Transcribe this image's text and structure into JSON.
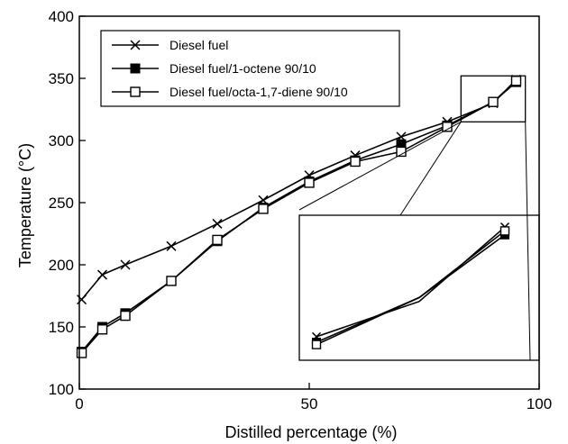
{
  "chart_data": {
    "type": "line",
    "title": "",
    "xlabel": "Distilled percentage (%)",
    "ylabel": "Temperature (°C)",
    "xlim": [
      0,
      100
    ],
    "ylim": [
      100,
      400
    ],
    "xticks": [
      0,
      50,
      100
    ],
    "yticks": [
      100,
      150,
      200,
      250,
      300,
      350,
      400
    ],
    "grid": false,
    "legend_position": "top-left",
    "series": [
      {
        "name": "Diesel fuel",
        "marker": "x",
        "x": [
          0.5,
          5,
          10,
          20,
          30,
          40,
          50,
          60,
          70,
          80,
          90,
          95
        ],
        "y": [
          172,
          192,
          200,
          215,
          233,
          252,
          272,
          288,
          303,
          315,
          330,
          349
        ]
      },
      {
        "name": "Diesel fuel/1-octene 90/10",
        "marker": "filled-square",
        "x": [
          0.5,
          5,
          10,
          20,
          30,
          40,
          50,
          60,
          70,
          80,
          90,
          95
        ],
        "y": [
          130,
          150,
          161,
          187,
          219,
          246,
          267,
          284,
          297,
          312,
          331,
          347
        ]
      },
      {
        "name": "Diesel fuel/octa-1,7-diene 90/10",
        "marker": "open-square",
        "x": [
          0.5,
          5,
          10,
          20,
          30,
          40,
          50,
          60,
          70,
          80,
          90,
          95
        ],
        "y": [
          129,
          148,
          159,
          187,
          220,
          245,
          266,
          283,
          291,
          311,
          331,
          348
        ]
      }
    ],
    "inset": {
      "description": "zoom of the upper-right region",
      "xlim": [
        83,
        97
      ],
      "ylim": [
        315,
        352
      ]
    }
  }
}
